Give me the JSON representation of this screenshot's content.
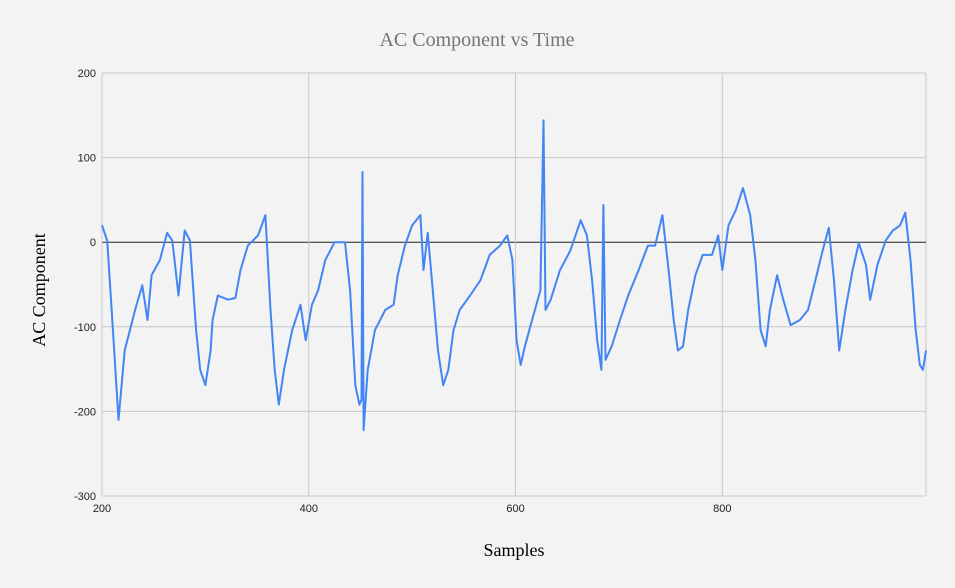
{
  "chart_data": {
    "type": "line",
    "title": "AC Component vs Time",
    "xlabel": "Samples",
    "ylabel": "AC Component",
    "xlim": [
      200,
      997
    ],
    "ylim": [
      -300,
      200
    ],
    "xticks": [
      200,
      400,
      600,
      800
    ],
    "yticks": [
      -300,
      -200,
      -100,
      0,
      100,
      200
    ],
    "grid": true,
    "legend": "none",
    "line_color": "#4285f4",
    "series": [
      {
        "points": [
          [
            200,
            20
          ],
          [
            205,
            2
          ],
          [
            210,
            -92
          ],
          [
            216,
            -210
          ],
          [
            222,
            -128
          ],
          [
            232,
            -80
          ],
          [
            239,
            -51
          ],
          [
            244,
            -92
          ],
          [
            248,
            -39
          ],
          [
            256,
            -21
          ],
          [
            263,
            11
          ],
          [
            268,
            2
          ],
          [
            274,
            -63
          ],
          [
            280,
            14
          ],
          [
            285,
            2
          ],
          [
            291,
            -104
          ],
          [
            295,
            -151
          ],
          [
            300,
            -169
          ],
          [
            305,
            -128
          ],
          [
            307,
            -92
          ],
          [
            312,
            -63
          ],
          [
            322,
            -68
          ],
          [
            329,
            -66
          ],
          [
            334,
            -33
          ],
          [
            341,
            -4
          ],
          [
            351,
            8
          ],
          [
            358,
            32
          ],
          [
            363,
            -80
          ],
          [
            367,
            -151
          ],
          [
            371,
            -192
          ],
          [
            376,
            -151
          ],
          [
            384,
            -104
          ],
          [
            392,
            -74
          ],
          [
            397,
            -116
          ],
          [
            403,
            -74
          ],
          [
            409,
            -57
          ],
          [
            416,
            -21
          ],
          [
            425,
            0
          ],
          [
            435,
            0
          ],
          [
            440,
            -57
          ],
          [
            445,
            -169
          ],
          [
            449,
            -192
          ],
          [
            451,
            -186
          ],
          [
            452,
            83
          ],
          [
            453,
            -222
          ],
          [
            457,
            -151
          ],
          [
            464,
            -104
          ],
          [
            474,
            -80
          ],
          [
            482,
            -74
          ],
          [
            486,
            -39
          ],
          [
            493,
            -4
          ],
          [
            500,
            20
          ],
          [
            508,
            32
          ],
          [
            511,
            -33
          ],
          [
            515,
            11
          ],
          [
            520,
            -57
          ],
          [
            525,
            -128
          ],
          [
            530,
            -169
          ],
          [
            535,
            -151
          ],
          [
            540,
            -104
          ],
          [
            546,
            -80
          ],
          [
            556,
            -63
          ],
          [
            566,
            -45
          ],
          [
            575,
            -15
          ],
          [
            585,
            -4
          ],
          [
            592,
            8
          ],
          [
            597,
            -21
          ],
          [
            601,
            -116
          ],
          [
            605,
            -145
          ],
          [
            609,
            -123
          ],
          [
            616,
            -92
          ],
          [
            624,
            -57
          ],
          [
            627,
            144
          ],
          [
            629,
            -80
          ],
          [
            634,
            -68
          ],
          [
            643,
            -33
          ],
          [
            653,
            -10
          ],
          [
            663,
            26
          ],
          [
            669,
            8
          ],
          [
            674,
            -45
          ],
          [
            679,
            -116
          ],
          [
            683,
            -151
          ],
          [
            685,
            44
          ],
          [
            687,
            -139
          ],
          [
            693,
            -123
          ],
          [
            701,
            -92
          ],
          [
            709,
            -63
          ],
          [
            719,
            -33
          ],
          [
            728,
            -4
          ],
          [
            735,
            -4
          ],
          [
            742,
            32
          ],
          [
            748,
            -33
          ],
          [
            753,
            -92
          ],
          [
            757,
            -128
          ],
          [
            762,
            -123
          ],
          [
            767,
            -80
          ],
          [
            774,
            -39
          ],
          [
            781,
            -15
          ],
          [
            790,
            -15
          ],
          [
            796,
            8
          ],
          [
            800,
            -33
          ],
          [
            806,
            20
          ],
          [
            813,
            38
          ],
          [
            820,
            64
          ],
          [
            827,
            32
          ],
          [
            832,
            -21
          ],
          [
            837,
            -104
          ],
          [
            842,
            -123
          ],
          [
            846,
            -80
          ],
          [
            853,
            -39
          ],
          [
            859,
            -68
          ],
          [
            866,
            -98
          ],
          [
            875,
            -92
          ],
          [
            883,
            -80
          ],
          [
            890,
            -45
          ],
          [
            897,
            -10
          ],
          [
            903,
            17
          ],
          [
            908,
            -45
          ],
          [
            913,
            -128
          ],
          [
            919,
            -80
          ],
          [
            926,
            -33
          ],
          [
            932,
            -1
          ],
          [
            939,
            -27
          ],
          [
            943,
            -68
          ],
          [
            950,
            -27
          ],
          [
            958,
            2
          ],
          [
            965,
            14
          ],
          [
            972,
            20
          ],
          [
            977,
            35
          ],
          [
            982,
            -21
          ],
          [
            987,
            -104
          ],
          [
            991,
            -145
          ],
          [
            994,
            -151
          ],
          [
            997,
            -128
          ]
        ]
      }
    ]
  }
}
